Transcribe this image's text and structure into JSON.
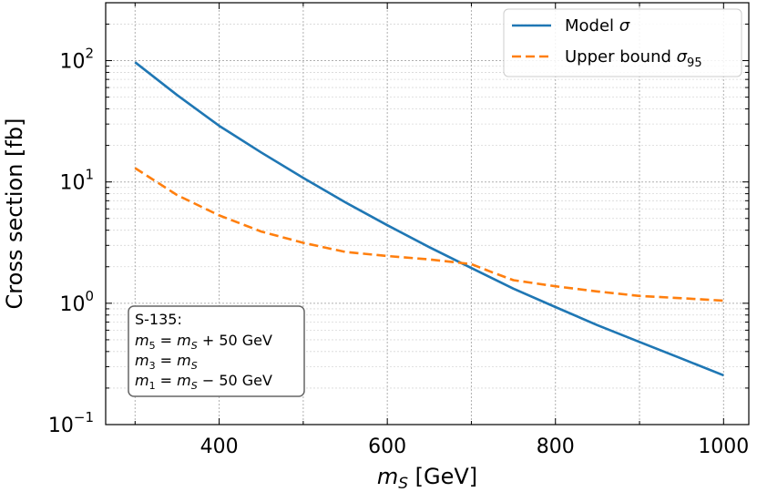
{
  "chart_data": {
    "type": "line",
    "title": "",
    "xlabel": "m_S [GeV]",
    "ylabel": "Cross section [fb]",
    "xscale": "linear",
    "yscale": "log",
    "xlim": [
      265,
      1030
    ],
    "ylim": [
      0.1,
      300
    ],
    "xticks": [
      400,
      600,
      800,
      1000
    ],
    "yticks": [
      {
        "value": 100,
        "base": "10",
        "exp": "2"
      },
      {
        "value": 10,
        "base": "10",
        "exp": "1"
      },
      {
        "value": 1,
        "base": "10",
        "exp": "0"
      },
      {
        "value": 0.1,
        "base": "10",
        "exp": "−1"
      }
    ],
    "grid": true,
    "legend_position": "top-right",
    "series": [
      {
        "name": "Model σ",
        "color": "#1f77b4",
        "style": "solid",
        "x": [
          300,
          350,
          400,
          450,
          500,
          550,
          600,
          650,
          700,
          750,
          800,
          850,
          900,
          950,
          1000
        ],
        "y": [
          97,
          52,
          29,
          17.5,
          10.8,
          6.8,
          4.4,
          2.9,
          1.95,
          1.32,
          0.93,
          0.66,
          0.48,
          0.35,
          0.255
        ]
      },
      {
        "name": "Upper bound σ95",
        "color": "#ff7f0e",
        "style": "dashed",
        "x": [
          300,
          350,
          400,
          450,
          500,
          550,
          600,
          650,
          700,
          725,
          750,
          800,
          850,
          900,
          950,
          1000
        ],
        "y": [
          13,
          7.8,
          5.3,
          3.9,
          3.15,
          2.65,
          2.45,
          2.3,
          2.1,
          1.8,
          1.55,
          1.38,
          1.25,
          1.15,
          1.1,
          1.05
        ]
      }
    ],
    "annotation": {
      "title": "S-135:",
      "lines": [
        {
          "lhs": "m",
          "lhs_sub": "5",
          "rhs": "m",
          "rhs_sub": "S",
          "offset": " + 50 GeV"
        },
        {
          "lhs": "m",
          "lhs_sub": "3",
          "rhs": "m",
          "rhs_sub": "S",
          "offset": ""
        },
        {
          "lhs": "m",
          "lhs_sub": "1",
          "rhs": "m",
          "rhs_sub": "S",
          "offset": " − 50 GeV"
        }
      ]
    }
  }
}
